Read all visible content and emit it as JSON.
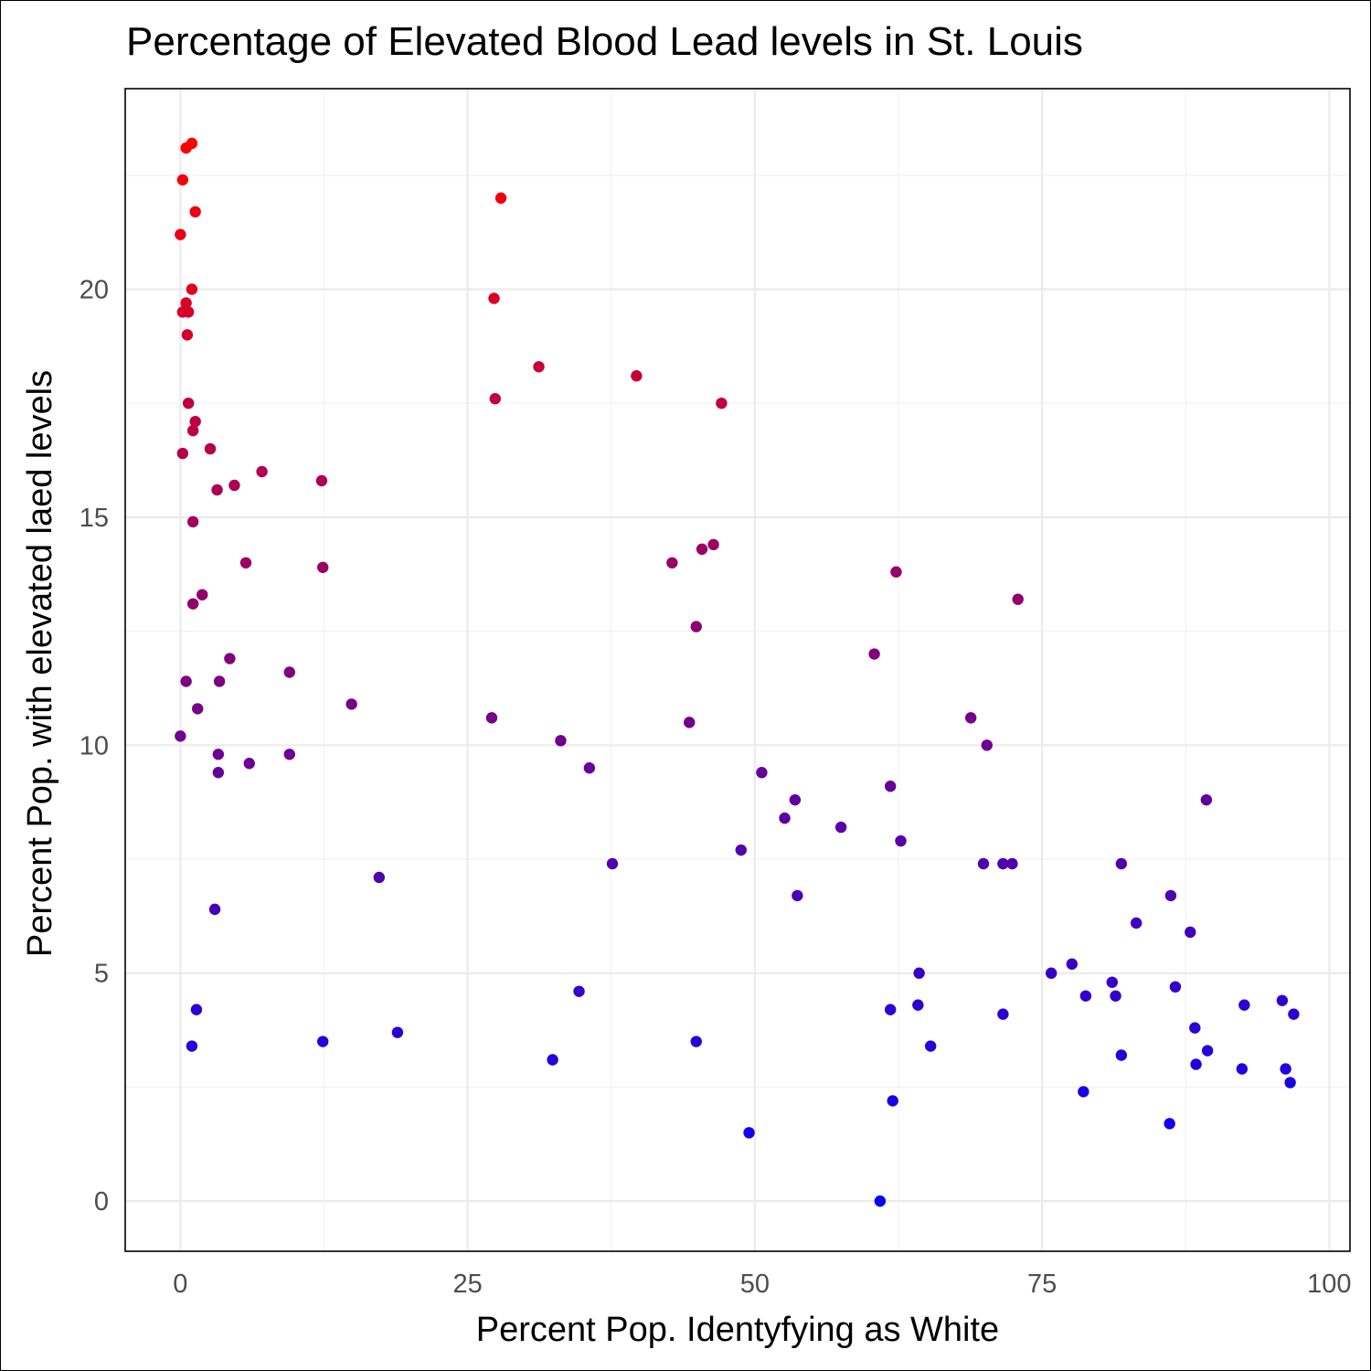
{
  "chart_data": {
    "type": "scatter",
    "title": "Percentage of Elevated Blood Lead levels in St. Louis",
    "xlabel": "Percent Pop. Identyfying as White",
    "ylabel": "Percent Pop. with elevated laed levels",
    "xlim": [
      -4.8,
      101.8
    ],
    "ylim": [
      -1.1,
      24.4
    ],
    "x_ticks": [
      0,
      25,
      50,
      75,
      100
    ],
    "x_tick_labels": [
      "0",
      "25",
      "50",
      "75",
      "100"
    ],
    "y_ticks": [
      0,
      5,
      10,
      15,
      20
    ],
    "y_tick_labels": [
      "0",
      "5",
      "10",
      "15",
      "20"
    ],
    "grid": true,
    "legend": "none",
    "color_scale": {
      "low": "#0000ff",
      "high": "#ff0000",
      "variable": "y"
    },
    "points": [
      {
        "x": 1.0,
        "y": 23.2
      },
      {
        "x": 0.5,
        "y": 23.1
      },
      {
        "x": 0.2,
        "y": 22.4
      },
      {
        "x": 1.3,
        "y": 21.7
      },
      {
        "x": 0.0,
        "y": 21.2
      },
      {
        "x": 27.9,
        "y": 22.0
      },
      {
        "x": 1.0,
        "y": 20.0
      },
      {
        "x": 0.5,
        "y": 19.7
      },
      {
        "x": 0.2,
        "y": 19.5
      },
      {
        "x": 0.7,
        "y": 19.5
      },
      {
        "x": 27.3,
        "y": 19.8
      },
      {
        "x": 0.6,
        "y": 19.0
      },
      {
        "x": 31.2,
        "y": 18.3
      },
      {
        "x": 39.7,
        "y": 18.1
      },
      {
        "x": 27.4,
        "y": 17.6
      },
      {
        "x": 47.1,
        "y": 17.5
      },
      {
        "x": 0.7,
        "y": 17.5
      },
      {
        "x": 1.3,
        "y": 17.1
      },
      {
        "x": 1.1,
        "y": 16.9
      },
      {
        "x": 2.6,
        "y": 16.5
      },
      {
        "x": 0.2,
        "y": 16.4
      },
      {
        "x": 7.1,
        "y": 16.0
      },
      {
        "x": 12.3,
        "y": 15.8
      },
      {
        "x": 4.7,
        "y": 15.7
      },
      {
        "x": 3.2,
        "y": 15.6
      },
      {
        "x": 1.1,
        "y": 14.9
      },
      {
        "x": 45.4,
        "y": 14.3
      },
      {
        "x": 46.4,
        "y": 14.4
      },
      {
        "x": 42.8,
        "y": 14.0
      },
      {
        "x": 5.7,
        "y": 14.0
      },
      {
        "x": 12.4,
        "y": 13.9
      },
      {
        "x": 62.3,
        "y": 13.8
      },
      {
        "x": 1.9,
        "y": 13.3
      },
      {
        "x": 1.1,
        "y": 13.1
      },
      {
        "x": 72.9,
        "y": 13.2
      },
      {
        "x": 44.9,
        "y": 12.6
      },
      {
        "x": 60.4,
        "y": 12.0
      },
      {
        "x": 4.3,
        "y": 11.9
      },
      {
        "x": 9.5,
        "y": 11.6
      },
      {
        "x": 0.5,
        "y": 11.4
      },
      {
        "x": 3.4,
        "y": 11.4
      },
      {
        "x": 14.9,
        "y": 10.9
      },
      {
        "x": 1.5,
        "y": 10.8
      },
      {
        "x": 27.1,
        "y": 10.6
      },
      {
        "x": 68.8,
        "y": 10.6
      },
      {
        "x": 44.3,
        "y": 10.5
      },
      {
        "x": 0.0,
        "y": 10.2
      },
      {
        "x": 33.1,
        "y": 10.1
      },
      {
        "x": 70.2,
        "y": 10.0
      },
      {
        "x": 3.3,
        "y": 9.8
      },
      {
        "x": 9.5,
        "y": 9.8
      },
      {
        "x": 6.0,
        "y": 9.6
      },
      {
        "x": 35.6,
        "y": 9.5
      },
      {
        "x": 50.6,
        "y": 9.4
      },
      {
        "x": 3.3,
        "y": 9.4
      },
      {
        "x": 61.8,
        "y": 9.1
      },
      {
        "x": 89.3,
        "y": 8.8
      },
      {
        "x": 53.5,
        "y": 8.8
      },
      {
        "x": 52.6,
        "y": 8.4
      },
      {
        "x": 57.5,
        "y": 8.2
      },
      {
        "x": 62.7,
        "y": 7.9
      },
      {
        "x": 48.8,
        "y": 7.7
      },
      {
        "x": 37.6,
        "y": 7.4
      },
      {
        "x": 69.9,
        "y": 7.4
      },
      {
        "x": 71.6,
        "y": 7.4
      },
      {
        "x": 72.4,
        "y": 7.4
      },
      {
        "x": 81.9,
        "y": 7.4
      },
      {
        "x": 17.3,
        "y": 7.1
      },
      {
        "x": 53.7,
        "y": 6.7
      },
      {
        "x": 86.2,
        "y": 6.7
      },
      {
        "x": 3.0,
        "y": 6.4
      },
      {
        "x": 83.2,
        "y": 6.1
      },
      {
        "x": 87.9,
        "y": 5.9
      },
      {
        "x": 64.3,
        "y": 5.0
      },
      {
        "x": 75.8,
        "y": 5.0
      },
      {
        "x": 77.6,
        "y": 5.2
      },
      {
        "x": 81.1,
        "y": 4.8
      },
      {
        "x": 86.6,
        "y": 4.7
      },
      {
        "x": 34.7,
        "y": 4.6
      },
      {
        "x": 78.8,
        "y": 4.5
      },
      {
        "x": 81.4,
        "y": 4.5
      },
      {
        "x": 64.2,
        "y": 4.3
      },
      {
        "x": 61.8,
        "y": 4.2
      },
      {
        "x": 92.6,
        "y": 4.3
      },
      {
        "x": 95.9,
        "y": 4.4
      },
      {
        "x": 96.9,
        "y": 4.1
      },
      {
        "x": 1.4,
        "y": 4.2
      },
      {
        "x": 71.6,
        "y": 4.1
      },
      {
        "x": 88.3,
        "y": 3.8
      },
      {
        "x": 18.9,
        "y": 3.7
      },
      {
        "x": 12.4,
        "y": 3.5
      },
      {
        "x": 44.9,
        "y": 3.5
      },
      {
        "x": 1.0,
        "y": 3.4
      },
      {
        "x": 65.3,
        "y": 3.4
      },
      {
        "x": 89.4,
        "y": 3.3
      },
      {
        "x": 81.9,
        "y": 3.2
      },
      {
        "x": 32.4,
        "y": 3.1
      },
      {
        "x": 88.4,
        "y": 3.0
      },
      {
        "x": 92.4,
        "y": 2.9
      },
      {
        "x": 96.2,
        "y": 2.9
      },
      {
        "x": 96.6,
        "y": 2.6
      },
      {
        "x": 78.6,
        "y": 2.4
      },
      {
        "x": 62.0,
        "y": 2.2
      },
      {
        "x": 86.1,
        "y": 1.7
      },
      {
        "x": 49.5,
        "y": 1.5
      },
      {
        "x": 60.9,
        "y": 0.0
      }
    ]
  }
}
